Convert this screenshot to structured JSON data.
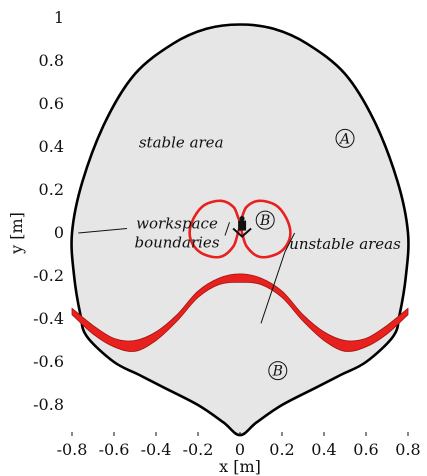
{
  "chart_data": {
    "type": "area",
    "xlabel": "x [m]",
    "ylabel": "y [m]",
    "xlim": [
      -0.8,
      0.8
    ],
    "ylim": [
      -0.95,
      1.0
    ],
    "x_ticks": [
      "-0.8",
      "-0.6",
      "-0.4",
      "-0.2",
      "0",
      "0.2",
      "0.4",
      "0.6",
      "0.8"
    ],
    "y_ticks": [
      "1",
      "0.8",
      "0.6",
      "0.4",
      "0.2",
      "0",
      "-0.2",
      "-0.4",
      "-0.6",
      "-0.8"
    ],
    "grid": false,
    "colors": {
      "stable_fill": "#e6e6e6",
      "boundary": "#000000",
      "unstable": "#e8201e",
      "unstable_edge": "#9e1412"
    },
    "workspace_boundary": {
      "x": [
        0.0,
        0.16,
        0.32,
        0.5,
        0.64,
        0.75,
        0.8,
        0.79,
        0.76,
        0.73,
        0.6,
        0.48,
        0.36,
        0.2,
        0.08,
        0.0,
        -0.08,
        -0.2,
        -0.36,
        -0.48,
        -0.6,
        -0.73,
        -0.76,
        -0.79,
        -0.8,
        -0.75,
        -0.64,
        -0.5,
        -0.32,
        -0.16,
        0.0
      ],
      "y": [
        0.97,
        0.95,
        0.88,
        0.74,
        0.52,
        0.24,
        0.0,
        -0.2,
        -0.38,
        -0.48,
        -0.6,
        -0.66,
        -0.72,
        -0.8,
        -0.88,
        -0.94,
        -0.88,
        -0.8,
        -0.72,
        -0.66,
        -0.6,
        -0.48,
        -0.38,
        -0.2,
        0.0,
        0.24,
        0.52,
        0.74,
        0.88,
        0.95,
        0.97
      ]
    },
    "unstable_band": {
      "x": [
        -0.8,
        -0.7,
        -0.6,
        -0.5,
        -0.4,
        -0.3,
        -0.2,
        -0.1,
        0.0,
        0.1,
        0.2,
        0.3,
        0.4,
        0.5,
        0.6,
        0.7,
        0.8
      ],
      "y_upper": [
        -0.35,
        -0.43,
        -0.49,
        -0.5,
        -0.46,
        -0.38,
        -0.27,
        -0.21,
        -0.19,
        -0.21,
        -0.27,
        -0.38,
        -0.46,
        -0.5,
        -0.49,
        -0.43,
        -0.35
      ],
      "y_lower": [
        -0.38,
        -0.47,
        -0.53,
        -0.55,
        -0.5,
        -0.41,
        -0.3,
        -0.24,
        -0.23,
        -0.24,
        -0.3,
        -0.41,
        -0.5,
        -0.55,
        -0.53,
        -0.47,
        -0.38
      ]
    },
    "unstable_loop": {
      "x": [
        0.0,
        0.03,
        0.09,
        0.17,
        0.22,
        0.24,
        0.22,
        0.17,
        0.09,
        0.03,
        0.0,
        -0.03,
        -0.09,
        -0.17,
        -0.22,
        -0.24,
        -0.22,
        -0.17,
        -0.09,
        -0.03,
        0.0
      ],
      "y": [
        0.06,
        0.12,
        0.15,
        0.13,
        0.07,
        0.0,
        -0.06,
        -0.1,
        -0.11,
        -0.06,
        0.02,
        -0.06,
        -0.11,
        -0.1,
        -0.06,
        0.0,
        0.07,
        0.13,
        0.15,
        0.12,
        0.06
      ]
    },
    "region_labels": [
      {
        "text": "stable area",
        "x": -0.28,
        "y": 0.42
      },
      {
        "text": "A",
        "x": 0.5,
        "y": 0.44
      },
      {
        "text": "B",
        "x": 0.12,
        "y": 0.06
      },
      {
        "text": "B",
        "x": 0.18,
        "y": -0.64
      }
    ],
    "annotations": [
      {
        "lines": [
          "workspace",
          "boundaries"
        ],
        "x": -0.3,
        "y": 0.0,
        "pointers": [
          [
            -0.05,
            0.05
          ],
          [
            -0.77,
            0.0
          ]
        ]
      },
      {
        "lines": [
          "unstable areas"
        ],
        "x": 0.5,
        "y": -0.05,
        "pointers": [
          [
            0.26,
            0.0
          ],
          [
            0.1,
            -0.42
          ]
        ]
      }
    ],
    "robot_marker": {
      "x": 0.01,
      "y": 0.03
    }
  }
}
